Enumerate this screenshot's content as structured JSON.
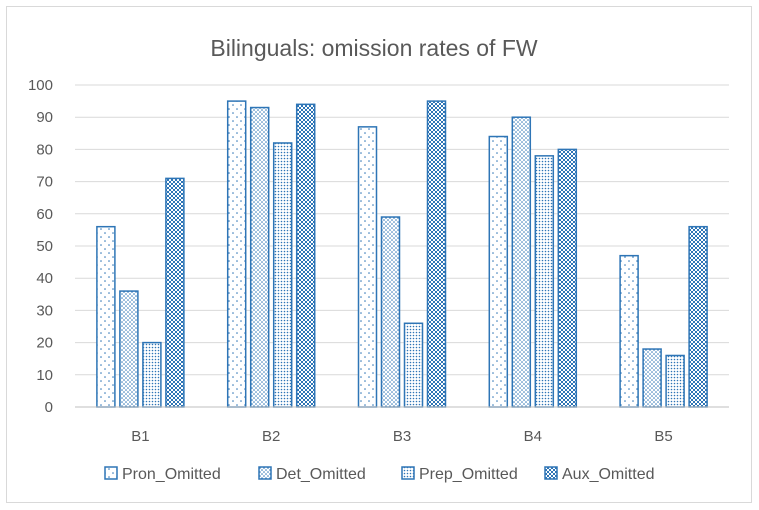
{
  "chart_data": {
    "type": "bar",
    "title": "Bilinguals: omission rates of FW",
    "xlabel": "",
    "ylabel": "",
    "categories": [
      "B1",
      "B2",
      "B3",
      "B4",
      "B5"
    ],
    "series": [
      {
        "name": "Pron_Omitted",
        "values": [
          56,
          95,
          87,
          84,
          47
        ],
        "pattern": "sparse-dots"
      },
      {
        "name": "Det_Omitted",
        "values": [
          36,
          93,
          59,
          90,
          18
        ],
        "pattern": "medium-dots"
      },
      {
        "name": "Prep_Omitted",
        "values": [
          20,
          82,
          26,
          78,
          16
        ],
        "pattern": "dense-dots"
      },
      {
        "name": "Aux_Omitted",
        "values": [
          71,
          94,
          95,
          80,
          56
        ],
        "pattern": "checker"
      }
    ],
    "ylim": [
      0,
      100
    ],
    "yticks": [
      0,
      10,
      20,
      30,
      40,
      50,
      60,
      70,
      80,
      90,
      100
    ],
    "grid": true,
    "legend_position": "bottom",
    "colors": {
      "bar_stroke": "#2e75b6",
      "grid": "#d9d9d9",
      "text": "#595959"
    }
  }
}
